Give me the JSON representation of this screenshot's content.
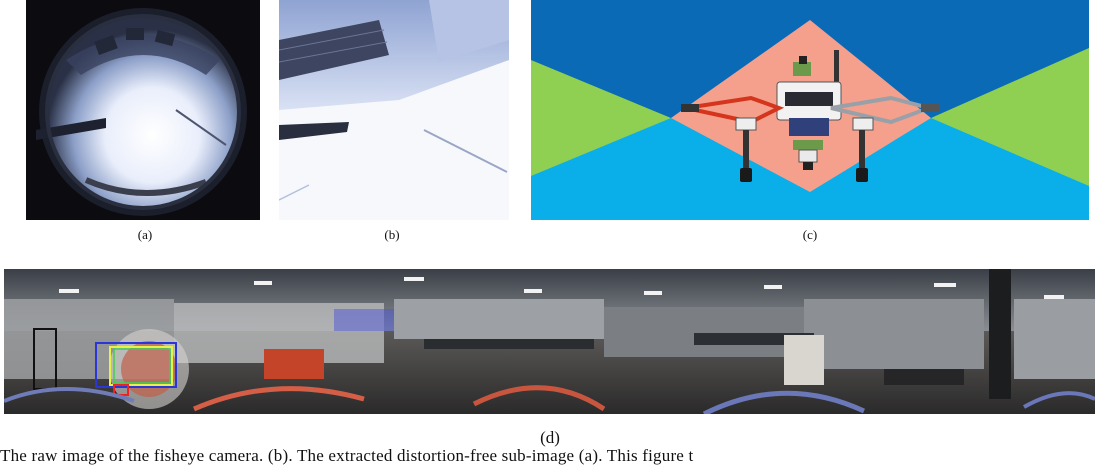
{
  "panels": {
    "a": {
      "label": "(a)"
    },
    "b": {
      "label": "(b)"
    },
    "c": {
      "label": "(c)"
    },
    "d": {
      "label": "(d)"
    }
  },
  "caption_text": "The raw image of the fisheye camera. (b). The extracted distortion-free sub-image (a). This figure t",
  "colors": {
    "sky_blue_dark": "#0a6ab6",
    "sky_blue_light": "#0aaee8",
    "green": "#8fd052",
    "salmon": "#f4a08c",
    "frame_red": "#d4351c"
  }
}
